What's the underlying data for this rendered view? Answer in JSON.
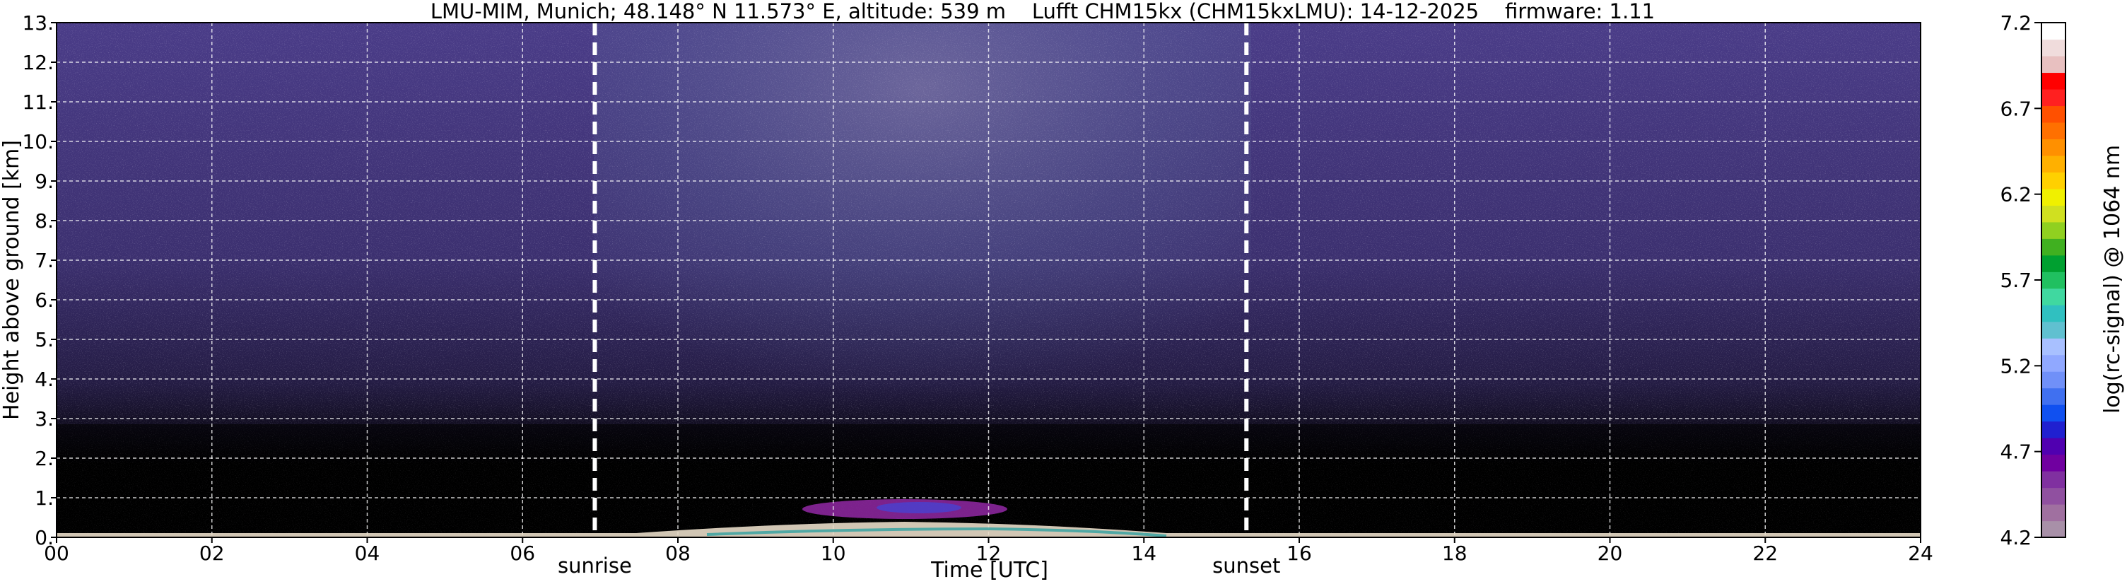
{
  "chart_data": {
    "type": "heatmap",
    "title": "LMU-MIM, Munich; 48.148° N 11.573° E, altitude: 539 m    Lufft CHM15kx (CHM15kxLMU): 14-12-2025    firmware: 1.11",
    "xlabel": "Time [UTC]",
    "ylabel": "Height above ground [km]",
    "xlim": [
      0,
      24
    ],
    "ylim": [
      0,
      13
    ],
    "x_ticks": [
      "00",
      "02",
      "04",
      "06",
      "08",
      "10",
      "12",
      "14",
      "16",
      "18",
      "20",
      "22",
      "24"
    ],
    "x_tick_values": [
      0,
      2,
      4,
      6,
      8,
      10,
      12,
      14,
      16,
      18,
      20,
      22,
      24
    ],
    "y_ticks": [
      "0.",
      "1.",
      "2.",
      "3.",
      "4.",
      "5.",
      "6.",
      "7.",
      "8.",
      "9.",
      "10.",
      "11.",
      "12.",
      "13."
    ],
    "y_tick_values": [
      0,
      1,
      2,
      3,
      4,
      5,
      6,
      7,
      8,
      9,
      10,
      11,
      12,
      13
    ],
    "grid": true,
    "events": [
      {
        "label": "sunrise",
        "time": 6.93
      },
      {
        "label": "sunset",
        "time": 15.32
      }
    ],
    "colorbar": {
      "label": "log(rc-signal) @ 1064 nm",
      "ticks": [
        "4.2",
        "4.7",
        "5.2",
        "5.7",
        "6.2",
        "6.7",
        "7.2"
      ],
      "tick_values": [
        4.2,
        4.7,
        5.2,
        5.7,
        6.2,
        6.7,
        7.2
      ],
      "range": [
        4.2,
        7.2
      ],
      "colors": [
        "#a890a8",
        "#a070a0",
        "#9050a0",
        "#8030a0",
        "#7000a0",
        "#5000b0",
        "#2020d0",
        "#1050f0",
        "#4070f0",
        "#7090f8",
        "#90a8ff",
        "#a8c0ff",
        "#60c0d0",
        "#30c0c0",
        "#40d8a0",
        "#20c060",
        "#00a030",
        "#40b020",
        "#90d020",
        "#d0e020",
        "#f0f000",
        "#ffd000",
        "#ffb000",
        "#ff9000",
        "#ff7000",
        "#ff5000",
        "#ff2020",
        "#ff0000",
        "#e8c0c0",
        "#f0dcdc",
        "#ffffff"
      ]
    },
    "colors": {
      "background_night": "#000000",
      "noise_dominant": "#4c3c88",
      "boundary_layer_band": "#c030c0",
      "event_line": "#ffffff",
      "grid": "#ffffff"
    }
  }
}
